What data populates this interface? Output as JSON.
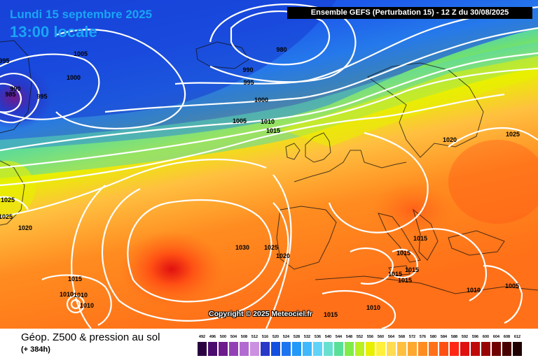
{
  "header": {
    "date_text": "Lundi 15 septembre 2025",
    "time_text": "13:00 locale",
    "model_text": "Ensemble GEFS  (Perturbation 15)  -  12 Z du 30/08/2025"
  },
  "copyright": "Copyright © 2025 Meteociel.fr",
  "footer": {
    "title": "Géop. Z500 & pression au sol",
    "forecast": "(+ 384h)"
  },
  "scale": {
    "values": [
      "492",
      "496",
      "500",
      "504",
      "508",
      "512",
      "516",
      "520",
      "524",
      "528",
      "532",
      "536",
      "540",
      "544",
      "548",
      "552",
      "556",
      "560",
      "564",
      "568",
      "572",
      "576",
      "580",
      "584",
      "588",
      "592",
      "596",
      "600",
      "604",
      "608",
      "612"
    ],
    "colors": [
      "#2a0040",
      "#4a0a6e",
      "#6e1a8c",
      "#9240b4",
      "#b26ad0",
      "#cc90e0",
      "#2838c8",
      "#1450e0",
      "#1c74f0",
      "#2298f8",
      "#40b8fc",
      "#60d4f8",
      "#68e0d0",
      "#58e098",
      "#80ec48",
      "#b8f020",
      "#e8f000",
      "#fff03c",
      "#ffdc50",
      "#ffc040",
      "#ffa830",
      "#ff8c20",
      "#ff7018",
      "#ff5014",
      "#ff2814",
      "#e01010",
      "#c00808",
      "#980404",
      "#700000",
      "#480000",
      "#200000"
    ]
  },
  "isobars": [
    {
      "text": "995"
    },
    {
      "text": "990"
    },
    {
      "text": "985"
    },
    {
      "text": "995"
    },
    {
      "text": "1005"
    },
    {
      "text": "1000"
    },
    {
      "text": "980"
    },
    {
      "text": "990"
    },
    {
      "text": "995"
    },
    {
      "text": "1000"
    },
    {
      "text": "1005"
    },
    {
      "text": "1010"
    },
    {
      "text": "1015"
    },
    {
      "text": "1020"
    },
    {
      "text": "1025"
    },
    {
      "text": "1025"
    },
    {
      "text": "1025"
    },
    {
      "text": "1020"
    },
    {
      "text": "1030"
    },
    {
      "text": "1025"
    },
    {
      "text": "1020"
    },
    {
      "text": "1015"
    },
    {
      "text": "1015"
    },
    {
      "text": "1015"
    },
    {
      "text": "1015"
    },
    {
      "text": "1015"
    },
    {
      "text": "1015"
    },
    {
      "text": "1010"
    },
    {
      "text": "1010"
    },
    {
      "text": "1010"
    },
    {
      "text": "1005"
    },
    {
      "text": "1010"
    },
    {
      "text": "1015"
    },
    {
      "text": "1010"
    }
  ]
}
